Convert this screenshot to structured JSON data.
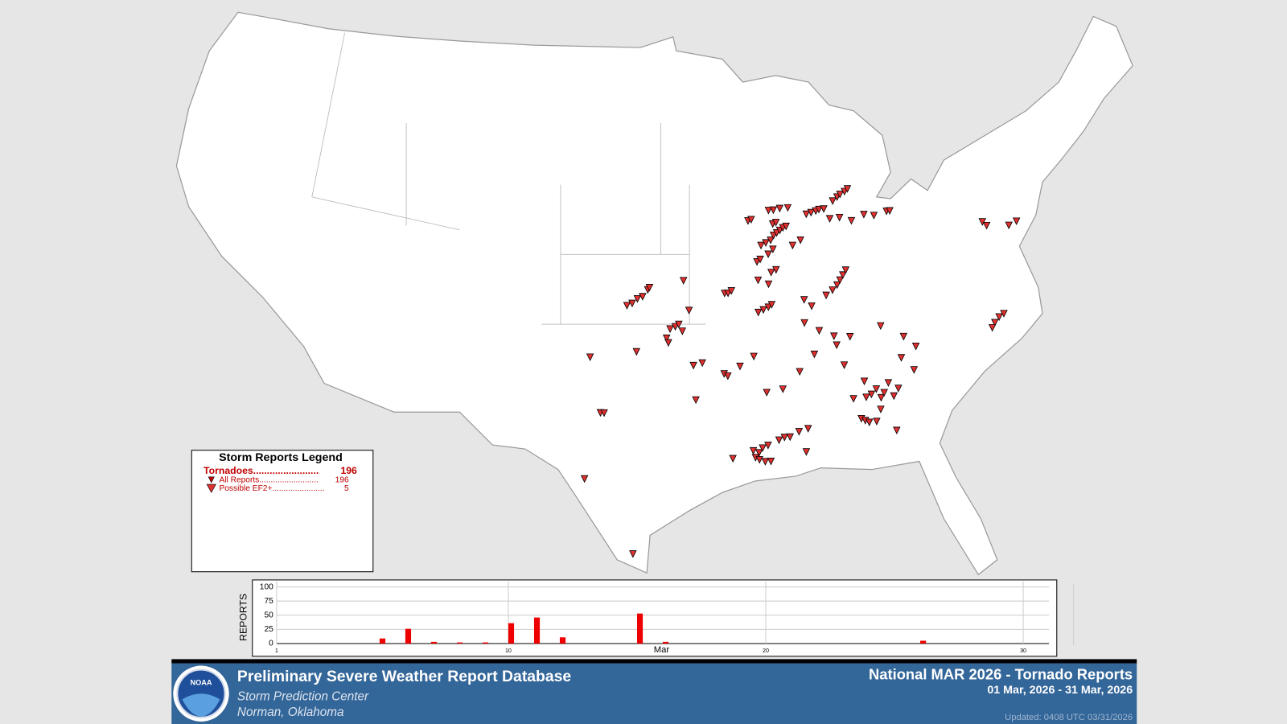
{
  "legend": {
    "title": "Storm Reports Legend",
    "tornadoes_label": "Tornadoes........................",
    "tornadoes_count": 196,
    "all_label": "All Reports..........................",
    "all_count": 196,
    "ef2_label": "Possible EF2+.......................",
    "ef2_count": 5
  },
  "map": {
    "reports": [
      [
        -87.3,
        41.6
      ],
      [
        -87.0,
        41.65
      ],
      [
        -86.7,
        41.7
      ],
      [
        -86.5,
        41.75
      ],
      [
        -86.2,
        41.75
      ],
      [
        -85.6,
        42.05
      ],
      [
        -85.3,
        42.2
      ],
      [
        -85.1,
        42.3
      ],
      [
        -84.8,
        42.4
      ],
      [
        -84.6,
        42.5
      ],
      [
        -89.6,
        41.9
      ],
      [
        -89.3,
        41.9
      ],
      [
        -88.9,
        41.95
      ],
      [
        -88.4,
        41.95
      ],
      [
        -89.4,
        41.3
      ],
      [
        -89.2,
        41.35
      ],
      [
        -90.9,
        41.5
      ],
      [
        -90.7,
        41.55
      ],
      [
        -85.9,
        41.3
      ],
      [
        -85.3,
        41.3
      ],
      [
        -84.6,
        41.1
      ],
      [
        -83.8,
        41.3
      ],
      [
        -83.2,
        41.2
      ],
      [
        -82.4,
        41.3
      ],
      [
        -82.2,
        41.3
      ],
      [
        -90.2,
        40.4
      ],
      [
        -89.9,
        40.5
      ],
      [
        -89.6,
        40.6
      ],
      [
        -89.4,
        40.8
      ],
      [
        -89.2,
        40.9
      ],
      [
        -89.0,
        41.0
      ],
      [
        -88.8,
        41.1
      ],
      [
        -88.6,
        41.15
      ],
      [
        -89.8,
        40.0
      ],
      [
        -89.5,
        40.2
      ],
      [
        -88.3,
        40.3
      ],
      [
        -87.8,
        40.5
      ],
      [
        -90.5,
        39.7
      ],
      [
        -90.3,
        39.8
      ],
      [
        -89.7,
        39.2
      ],
      [
        -89.4,
        39.3
      ],
      [
        -90.5,
        38.9
      ],
      [
        -89.9,
        38.7
      ],
      [
        -92.5,
        38.4
      ],
      [
        -92.3,
        38.4
      ],
      [
        -92.1,
        38.5
      ],
      [
        -90.6,
        37.5
      ],
      [
        -90.3,
        37.6
      ],
      [
        -90.0,
        37.7
      ],
      [
        -89.8,
        37.8
      ],
      [
        -86.6,
        38.0
      ],
      [
        -86.2,
        38.2
      ],
      [
        -85.9,
        38.4
      ],
      [
        -85.7,
        38.6
      ],
      [
        -85.5,
        38.8
      ],
      [
        -85.3,
        39.0
      ],
      [
        -87.9,
        37.9
      ],
      [
        -87.5,
        37.6
      ],
      [
        -98.2,
        37.9
      ],
      [
        -97.9,
        38.0
      ],
      [
        -97.6,
        38.2
      ],
      [
        -97.3,
        38.3
      ],
      [
        -97.0,
        38.6
      ],
      [
        -96.9,
        38.7
      ],
      [
        -95.7,
        36.9
      ],
      [
        -95.4,
        37.0
      ],
      [
        -95.2,
        37.1
      ],
      [
        -95.9,
        36.5
      ],
      [
        -95.8,
        36.3
      ],
      [
        -95.0,
        36.8
      ],
      [
        -94.9,
        39.0
      ],
      [
        -94.6,
        37.7
      ],
      [
        -97.6,
        35.9
      ],
      [
        -100.2,
        35.6
      ],
      [
        -94.4,
        35.3
      ],
      [
        -93.9,
        35.4
      ],
      [
        -92.7,
        34.9
      ],
      [
        -92.5,
        34.8
      ],
      [
        -91.8,
        35.2
      ],
      [
        -91.0,
        35.6
      ],
      [
        -94.3,
        33.8
      ],
      [
        -99.5,
        33.2
      ],
      [
        -99.3,
        33.2
      ],
      [
        -100.2,
        30.3
      ],
      [
        -97.6,
        27.1
      ],
      [
        -88.0,
        36.9
      ],
      [
        -87.2,
        36.5
      ],
      [
        -86.4,
        36.2
      ],
      [
        -86.3,
        35.8
      ],
      [
        -85.5,
        36.1
      ],
      [
        -87.6,
        35.5
      ],
      [
        -86.0,
        34.9
      ],
      [
        -83.7,
        36.4
      ],
      [
        -91.3,
        31.5
      ],
      [
        -91.0,
        31.4
      ],
      [
        -90.8,
        31.6
      ],
      [
        -90.5,
        31.7
      ],
      [
        -91.2,
        31.2
      ],
      [
        -91.0,
        31.1
      ],
      [
        -90.7,
        31.0
      ],
      [
        -90.4,
        31.0
      ],
      [
        -89.9,
        31.9
      ],
      [
        -89.6,
        32.0
      ],
      [
        -89.3,
        32.0
      ],
      [
        -88.8,
        32.2
      ],
      [
        -88.3,
        32.3
      ],
      [
        -92.4,
        31.2
      ],
      [
        -88.5,
        31.3
      ],
      [
        -90.4,
        34.0
      ],
      [
        -89.5,
        34.1
      ],
      [
        -88.5,
        34.8
      ],
      [
        -85.0,
        33.4
      ],
      [
        -84.7,
        33.5
      ],
      [
        -84.4,
        33.7
      ],
      [
        -84.2,
        33.3
      ],
      [
        -84.0,
        33.5
      ],
      [
        -83.7,
        33.9
      ],
      [
        -83.5,
        33.3
      ],
      [
        -83.2,
        33.6
      ],
      [
        -84.3,
        32.8
      ],
      [
        -85.4,
        32.5
      ],
      [
        -85.2,
        32.4
      ],
      [
        -85.0,
        32.3
      ],
      [
        -84.6,
        32.3
      ],
      [
        -83.6,
        31.8
      ],
      [
        -85.7,
        33.4
      ],
      [
        -85.0,
        34.1
      ],
      [
        -82.8,
        34.9
      ],
      [
        -82.2,
        34.3
      ],
      [
        -81.9,
        35.3
      ],
      [
        -82.5,
        35.8
      ],
      [
        -77.3,
        35.7
      ],
      [
        -77.0,
        35.9
      ],
      [
        -76.7,
        36.0
      ],
      [
        -77.5,
        35.5
      ],
      [
        -76.8,
        40.1
      ],
      [
        -76.6,
        39.9
      ],
      [
        -75.3,
        39.7
      ],
      [
        -74.8,
        39.8
      ]
    ]
  },
  "chart_data": {
    "type": "bar",
    "ylabel": "REPORTS",
    "xlabel": "Mar",
    "x": [
      5,
      6,
      7,
      8,
      9,
      10,
      11,
      12,
      15,
      16,
      26
    ],
    "values": [
      9,
      26,
      3,
      2,
      2,
      36,
      46,
      11,
      53,
      3,
      5
    ],
    "color": "#ee0000",
    "xlim": [
      1,
      31
    ],
    "xticks": [
      1,
      10,
      20,
      30
    ],
    "ylim": [
      0,
      100
    ],
    "yticks": [
      0,
      25,
      50,
      75,
      100
    ],
    "grid": true
  },
  "footer": {
    "title": "Preliminary Severe Weather Report Database",
    "org": "Storm Prediction Center",
    "location": "Norman, Oklahoma",
    "report_title": "National MAR 2026 - Tornado Reports",
    "date_range": "01 Mar, 2026 - 31 Mar, 2026",
    "updated": "Updated: 0408 UTC 03/31/2026",
    "logo": "NOAA"
  }
}
